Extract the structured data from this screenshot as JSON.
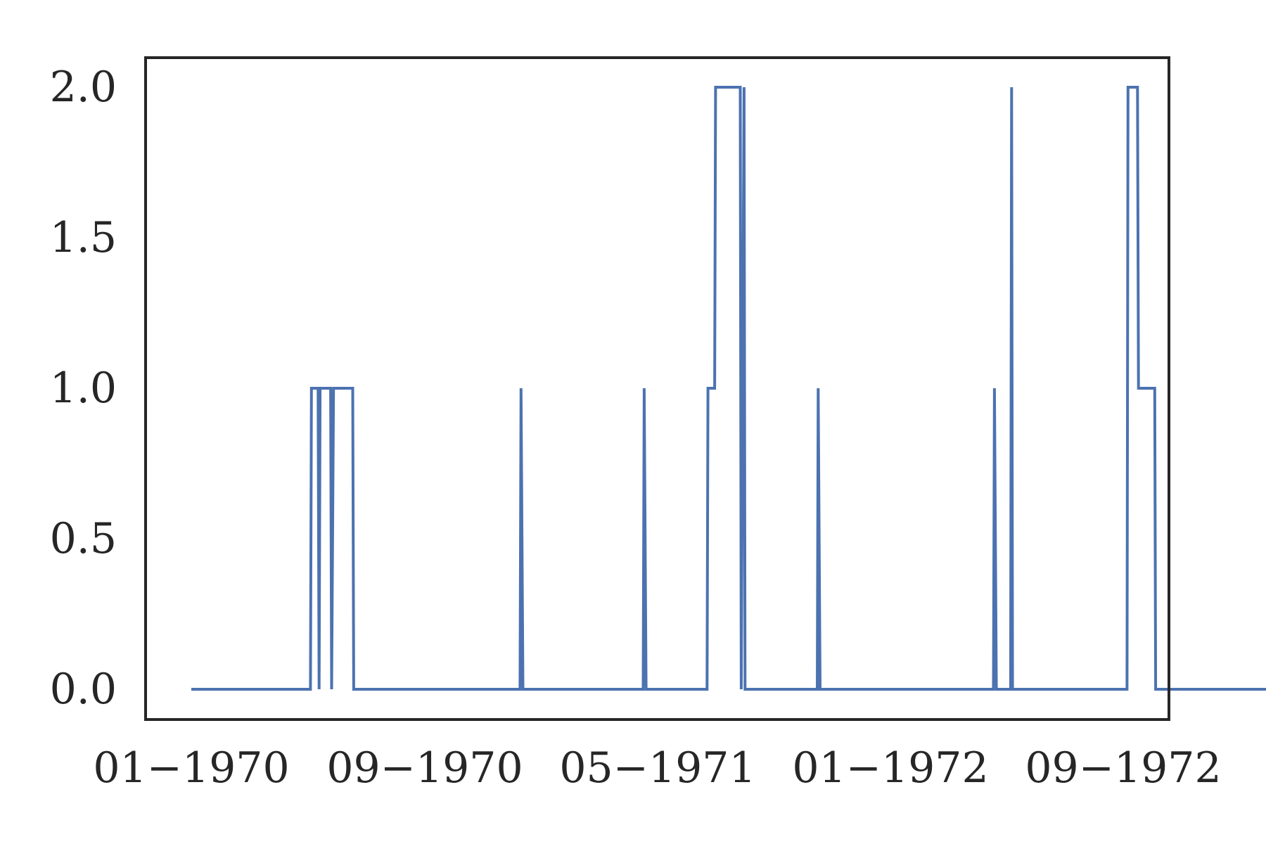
{
  "chart_data": {
    "type": "line",
    "title": "",
    "xlabel": "",
    "ylabel": "",
    "x_axis": {
      "kind": "date",
      "range": [
        "1969-12-01",
        "1972-10-15"
      ],
      "ticks": [
        {
          "value": "1970-01-01",
          "label": "01−1970"
        },
        {
          "value": "1970-09-01",
          "label": "09−1970"
        },
        {
          "value": "1971-05-01",
          "label": "05−1971"
        },
        {
          "value": "1972-01-01",
          "label": "01−1972"
        },
        {
          "value": "1972-09-01",
          "label": "09−1972"
        }
      ]
    },
    "y_axis": {
      "range": [
        -0.1,
        2.1
      ],
      "ticks": [
        {
          "value": 0.0,
          "label": "0.0"
        },
        {
          "value": 0.5,
          "label": "0.5"
        },
        {
          "value": 1.0,
          "label": "1.0"
        },
        {
          "value": 1.5,
          "label": "1.5"
        },
        {
          "value": 2.0,
          "label": "2.0"
        }
      ]
    },
    "grid": false,
    "legend": "none",
    "series": [
      {
        "color": "#4c72b0",
        "points": [
          [
            "1970-01-01",
            0
          ],
          [
            "1970-05-05",
            0
          ],
          [
            "1970-05-06",
            1
          ],
          [
            "1970-05-13",
            1
          ],
          [
            "1970-05-14",
            0
          ],
          [
            "1970-05-15",
            1
          ],
          [
            "1970-05-26",
            1
          ],
          [
            "1970-05-27",
            0
          ],
          [
            "1970-05-29",
            1
          ],
          [
            "1970-06-18",
            1
          ],
          [
            "1970-06-19",
            0
          ],
          [
            "1970-12-09",
            0
          ],
          [
            "1970-12-10",
            1
          ],
          [
            "1970-12-12",
            0
          ],
          [
            "1971-04-16",
            0
          ],
          [
            "1971-04-17",
            1
          ],
          [
            "1971-04-19",
            0
          ],
          [
            "1971-06-22",
            0
          ],
          [
            "1971-06-23",
            1
          ],
          [
            "1971-06-30",
            1
          ],
          [
            "1971-07-01",
            2
          ],
          [
            "1971-07-27",
            2
          ],
          [
            "1971-07-28",
            0
          ],
          [
            "1971-07-31",
            2
          ],
          [
            "1971-08-01",
            0
          ],
          [
            "1971-10-16",
            0
          ],
          [
            "1971-10-17",
            1
          ],
          [
            "1971-10-19",
            0
          ],
          [
            "1972-04-18",
            0
          ],
          [
            "1972-04-19",
            1
          ],
          [
            "1972-04-21",
            0
          ],
          [
            "1972-05-06",
            0
          ],
          [
            "1972-05-07",
            2
          ],
          [
            "1972-05-08",
            0
          ],
          [
            "1972-09-05",
            0
          ],
          [
            "1972-09-06",
            2
          ],
          [
            "1972-09-16",
            2
          ],
          [
            "1972-09-17",
            1
          ],
          [
            "1972-10-04",
            1
          ],
          [
            "1972-10-05",
            0
          ],
          [
            "1973-02-15",
            0
          ]
        ]
      }
    ]
  }
}
